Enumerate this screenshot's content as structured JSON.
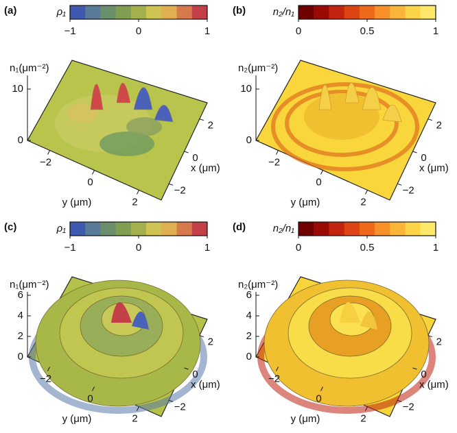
{
  "chart_data": [
    {
      "type": "surface3d",
      "panel_label": "(a)",
      "colorbar": {
        "label": "ρ₁",
        "lim": [
          -1,
          1
        ],
        "ticks": [
          {
            "value": -1,
            "label": "−1"
          },
          0,
          1
        ],
        "colors": [
          "#4059b0",
          "#5a7a9a",
          "#6a8f6a",
          "#7f9e52",
          "#a4b04c",
          "#cfc452",
          "#e0b050",
          "#d67a4c",
          "#c44048"
        ]
      },
      "zlabel": "n₁(μm⁻²)",
      "zlim": [
        0,
        12
      ],
      "zticks": [
        0,
        10
      ],
      "xlabel": "x (μm)",
      "xlim": [
        -3,
        3
      ],
      "xticks": [
        {
          "value": -2,
          "label": "−2"
        },
        0,
        2
      ],
      "ylabel": "y (μm)",
      "ylim": [
        -3,
        3
      ],
      "yticks": [
        {
          "value": -2,
          "label": "−2"
        },
        0,
        2
      ],
      "surface_color": "#b9c44c"
    },
    {
      "type": "surface3d",
      "panel_label": "(b)",
      "colorbar": {
        "label": "n₂/n₁",
        "lim": [
          0,
          1
        ],
        "ticks": [
          0,
          0.5,
          1
        ],
        "colors": [
          "#6e0000",
          "#9a0a04",
          "#c22410",
          "#dc4414",
          "#ee6a1a",
          "#f8902a",
          "#fbb43a",
          "#fdd548",
          "#fde86a"
        ]
      },
      "zlabel": "n₂(μm⁻²)",
      "zlim": [
        0,
        12
      ],
      "zticks": [
        0,
        10
      ],
      "xlabel": "x (μm)",
      "xlim": [
        -3,
        3
      ],
      "xticks": [
        {
          "value": -2,
          "label": "−2"
        },
        0,
        2
      ],
      "ylabel": "y (μm)",
      "ylim": [
        -3,
        3
      ],
      "yticks": [
        {
          "value": -2,
          "label": "−2"
        },
        0,
        2
      ],
      "surface_color": "#f8d63c"
    },
    {
      "type": "surface3d",
      "panel_label": "(c)",
      "colorbar": {
        "label": "ρ₁",
        "lim": [
          -1,
          1
        ],
        "ticks": [
          {
            "value": -1,
            "label": "−1"
          },
          0,
          1
        ],
        "colors": [
          "#4059b0",
          "#5a7a9a",
          "#6a8f6a",
          "#7f9e52",
          "#a4b04c",
          "#cfc452",
          "#e0b050",
          "#d67a4c",
          "#c44048"
        ]
      },
      "zlabel": "n₁(μm⁻²)",
      "zlim": [
        0,
        6
      ],
      "zticks": [
        0,
        2,
        4,
        6
      ],
      "xlabel": "x (μm)",
      "xlim": [
        -3,
        3
      ],
      "xticks": [
        {
          "value": -2,
          "label": "−2"
        },
        0,
        2
      ],
      "ylabel": "y (μm)",
      "ylim": [
        -3,
        3
      ],
      "yticks": [
        {
          "value": -2,
          "label": "−2"
        },
        0,
        2
      ],
      "surface_color": "#b4c24a"
    },
    {
      "type": "surface3d",
      "panel_label": "(d)",
      "colorbar": {
        "label": "n₂/n₁",
        "lim": [
          0,
          1
        ],
        "ticks": [
          0,
          0.5,
          1
        ],
        "colors": [
          "#6e0000",
          "#9a0a04",
          "#c22410",
          "#dc4414",
          "#ee6a1a",
          "#f8902a",
          "#fbb43a",
          "#fdd548",
          "#fde86a"
        ]
      },
      "zlabel": "n₂(μm⁻²)",
      "zlim": [
        0,
        6
      ],
      "zticks": [
        0,
        2,
        4,
        6
      ],
      "xlabel": "x (μm)",
      "xlim": [
        -3,
        3
      ],
      "xticks": [
        {
          "value": -2,
          "label": "−2"
        },
        0,
        2
      ],
      "ylabel": "y (μm)",
      "ylim": [
        -3,
        3
      ],
      "yticks": [
        {
          "value": -2,
          "label": "−2"
        },
        0,
        2
      ],
      "surface_color": "#f6d43a"
    }
  ]
}
